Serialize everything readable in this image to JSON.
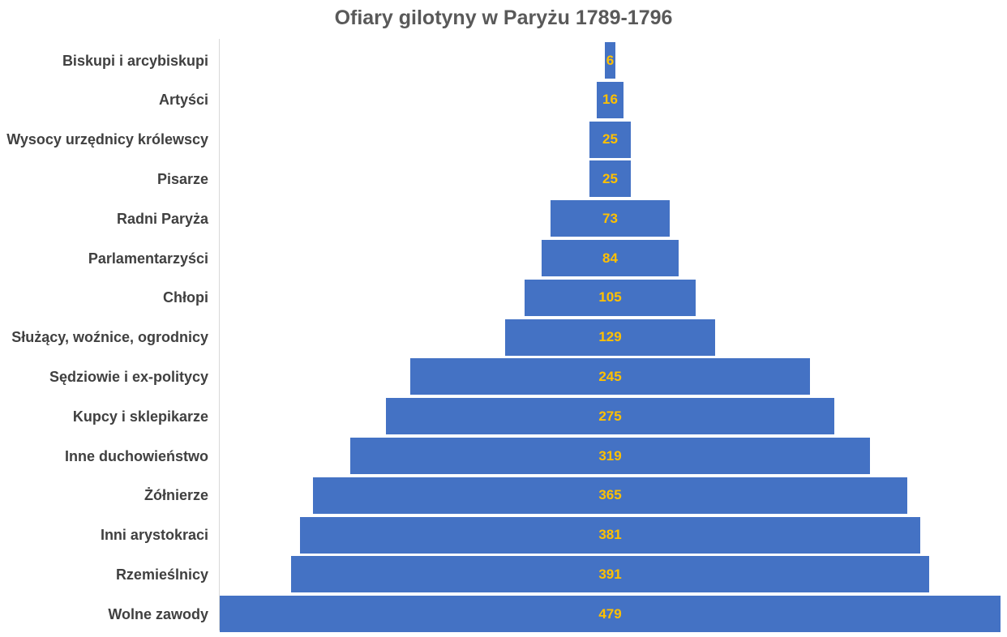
{
  "chart_data": {
    "type": "bar",
    "orientation": "horizontal",
    "layout": "centered-funnel",
    "title": "Ofiary gilotyny w Paryżu 1789-1796",
    "categories": [
      "Biskupi i arcybiskupi",
      "Artyści",
      "Wysocy urzędnicy królewscy",
      "Pisarze",
      "Radni Paryża",
      "Parlamentarzyści",
      "Chłopi",
      "Służący, woźnice, ogrodnicy",
      "Sędziowie i ex-politycy",
      "Kupcy i sklepikarze",
      "Inne duchowieństwo",
      "Żółnierze",
      "Inni arystokraci",
      "Rzemieślnicy",
      "Wolne zawody"
    ],
    "values": [
      6,
      16,
      25,
      25,
      73,
      84,
      105,
      129,
      245,
      275,
      319,
      365,
      381,
      391,
      479
    ],
    "bar_color": "#4472c4",
    "label_color": "#ffc000",
    "xlim": [
      0,
      479
    ],
    "grid": false,
    "legend": "none"
  }
}
